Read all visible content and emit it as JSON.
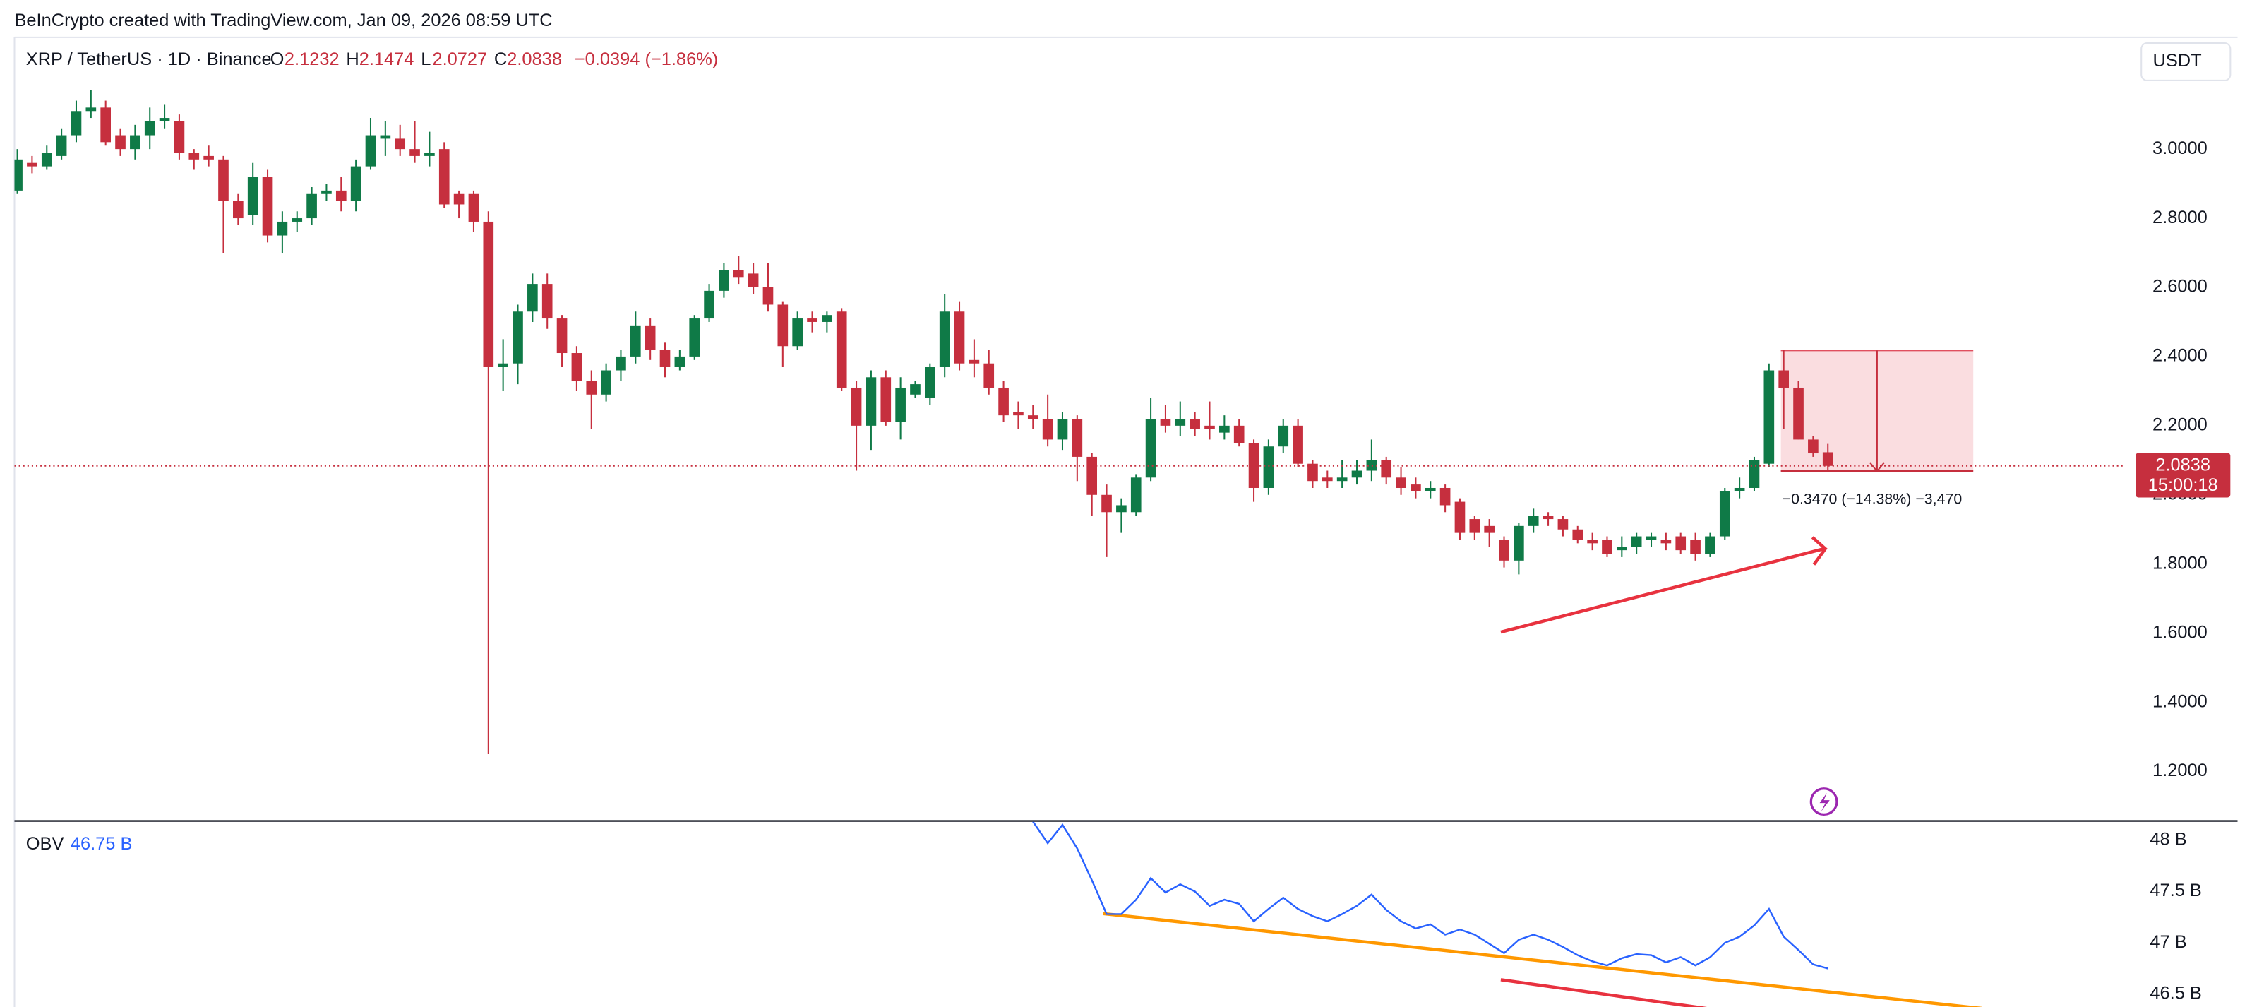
{
  "header": "BeInCrypto created with TradingView.com, Jan 09, 2026 08:59 UTC",
  "chart_data": [
    {
      "type": "candlestick",
      "title": "XRP / TetherUS · 1D · Binance",
      "ohlc_legend": {
        "open_label": "O",
        "open": 2.1232,
        "high_label": "H",
        "high": 2.1474,
        "low_label": "L",
        "low": 2.0727,
        "close_label": "C",
        "close": 2.0838,
        "change": "−0.0394 (−1.86%)"
      },
      "currency": "USDT",
      "countdown": "15:00:18",
      "measure_label": "−0.3470 (−14.38%) −3,470",
      "up_color": "#0f7a47",
      "down_color": "#c62f3e",
      "ylim": [
        1.059,
        3.319
      ],
      "yticks": [
        {
          "value": 1.2,
          "label": "1.2000"
        },
        {
          "value": 1.4,
          "label": "1.4000"
        },
        {
          "value": 1.6,
          "label": "1.6000"
        },
        {
          "value": 1.8,
          "label": "1.8000"
        },
        {
          "value": 2,
          "label": "2.0000"
        },
        {
          "value": 2.2,
          "label": "2.2000"
        },
        {
          "value": 2.4,
          "label": "2.4000"
        },
        {
          "value": 2.6,
          "label": "2.6000"
        },
        {
          "value": 2.8,
          "label": "2.8000"
        },
        {
          "value": 3,
          "label": "3.0000"
        }
      ],
      "open": [
        2.88,
        2.96,
        2.95,
        2.98,
        3.04,
        3.11,
        3.12,
        3.04,
        3.0,
        3.04,
        3.08,
        3.08,
        2.99,
        2.98,
        2.97,
        2.85,
        2.81,
        2.92,
        2.75,
        2.79,
        2.8,
        2.87,
        2.88,
        2.85,
        2.95,
        3.03,
        3.03,
        3.0,
        2.98,
        3.0,
        2.87,
        2.87,
        2.79,
        2.37,
        2.38,
        2.53,
        2.61,
        2.51,
        2.41,
        2.33,
        2.29,
        2.36,
        2.4,
        2.49,
        2.42,
        2.37,
        2.4,
        2.51,
        2.59,
        2.65,
        2.64,
        2.6,
        2.55,
        2.43,
        2.51,
        2.5,
        2.53,
        2.31,
        2.2,
        2.34,
        2.21,
        2.29,
        2.28,
        2.37,
        2.53,
        2.39,
        2.38,
        2.31,
        2.24,
        2.23,
        2.22,
        2.16,
        2.22,
        2.11,
        2.0,
        1.95,
        1.95,
        2.05,
        2.22,
        2.2,
        2.22,
        2.2,
        2.18,
        2.2,
        2.15,
        2.02,
        2.14,
        2.2,
        2.09,
        2.05,
        2.04,
        2.05,
        2.07,
        2.1,
        2.05,
        2.03,
        2.01,
        2.02,
        1.98,
        1.93,
        1.91,
        1.87,
        1.81,
        1.91,
        1.94,
        1.93,
        1.9,
        1.87,
        1.87,
        1.84,
        1.85,
        1.87,
        1.87,
        1.88,
        1.87,
        1.83,
        1.88,
        2.01,
        2.02,
        2.09,
        2.36,
        2.31,
        2.16,
        2.1232
      ],
      "high": [
        3.0,
        2.98,
        3.01,
        3.06,
        3.14,
        3.17,
        3.14,
        3.06,
        3.07,
        3.12,
        3.13,
        3.1,
        3.0,
        3.01,
        2.98,
        2.87,
        2.96,
        2.94,
        2.82,
        2.82,
        2.89,
        2.9,
        2.92,
        2.97,
        3.09,
        3.08,
        3.07,
        3.08,
        3.05,
        3.02,
        2.88,
        2.88,
        2.82,
        2.45,
        2.55,
        2.64,
        2.64,
        2.52,
        2.43,
        2.36,
        2.38,
        2.42,
        2.53,
        2.51,
        2.44,
        2.42,
        2.52,
        2.61,
        2.67,
        2.69,
        2.67,
        2.67,
        2.56,
        2.53,
        2.53,
        2.53,
        2.54,
        2.33,
        2.36,
        2.36,
        2.34,
        2.33,
        2.38,
        2.58,
        2.56,
        2.45,
        2.42,
        2.33,
        2.27,
        2.26,
        2.29,
        2.24,
        2.23,
        2.12,
        2.03,
        1.99,
        2.06,
        2.28,
        2.26,
        2.27,
        2.24,
        2.27,
        2.23,
        2.22,
        2.16,
        2.16,
        2.22,
        2.22,
        2.1,
        2.07,
        2.1,
        2.1,
        2.16,
        2.11,
        2.08,
        2.05,
        2.04,
        2.03,
        1.99,
        1.94,
        1.93,
        1.88,
        1.92,
        1.96,
        1.95,
        1.94,
        1.91,
        1.89,
        1.88,
        1.88,
        1.89,
        1.89,
        1.89,
        1.89,
        1.89,
        1.89,
        2.02,
        2.05,
        2.11,
        2.38,
        2.42,
        2.33,
        2.17,
        2.1474
      ],
      "low": [
        2.87,
        2.93,
        2.94,
        2.97,
        3.02,
        3.09,
        3.01,
        2.98,
        2.97,
        3.0,
        3.06,
        2.97,
        2.94,
        2.95,
        2.7,
        2.78,
        2.78,
        2.73,
        2.7,
        2.76,
        2.78,
        2.85,
        2.82,
        2.82,
        2.94,
        2.98,
        2.98,
        2.96,
        2.95,
        2.83,
        2.8,
        2.76,
        1.25,
        2.3,
        2.32,
        2.5,
        2.48,
        2.37,
        2.3,
        2.19,
        2.27,
        2.33,
        2.38,
        2.39,
        2.34,
        2.36,
        2.39,
        2.5,
        2.57,
        2.61,
        2.58,
        2.53,
        2.37,
        2.42,
        2.47,
        2.47,
        2.3,
        2.07,
        2.13,
        2.2,
        2.16,
        2.28,
        2.26,
        2.34,
        2.36,
        2.34,
        2.29,
        2.21,
        2.19,
        2.19,
        2.14,
        2.13,
        2.04,
        1.94,
        1.82,
        1.89,
        1.94,
        2.04,
        2.18,
        2.17,
        2.17,
        2.16,
        2.16,
        2.14,
        1.98,
        2.0,
        2.12,
        2.08,
        2.02,
        2.02,
        2.02,
        2.03,
        2.04,
        2.03,
        2.0,
        1.99,
        1.99,
        1.95,
        1.87,
        1.87,
        1.85,
        1.79,
        1.77,
        1.89,
        1.91,
        1.88,
        1.86,
        1.84,
        1.82,
        1.82,
        1.83,
        1.85,
        1.84,
        1.83,
        1.81,
        1.82,
        1.87,
        1.99,
        2.01,
        2.08,
        2.19,
        2.16,
        2.11,
        2.0727
      ],
      "close": [
        2.97,
        2.95,
        2.99,
        3.04,
        3.11,
        3.12,
        3.02,
        3.0,
        3.04,
        3.08,
        3.09,
        2.99,
        2.97,
        2.97,
        2.85,
        2.8,
        2.92,
        2.75,
        2.79,
        2.8,
        2.87,
        2.88,
        2.85,
        2.95,
        3.04,
        3.04,
        3.0,
        2.98,
        2.99,
        2.84,
        2.84,
        2.79,
        2.37,
        2.38,
        2.53,
        2.61,
        2.51,
        2.41,
        2.33,
        2.29,
        2.36,
        2.4,
        2.49,
        2.42,
        2.37,
        2.4,
        2.51,
        2.59,
        2.65,
        2.63,
        2.6,
        2.55,
        2.43,
        2.51,
        2.5,
        2.52,
        2.31,
        2.2,
        2.34,
        2.21,
        2.31,
        2.32,
        2.37,
        2.53,
        2.38,
        2.38,
        2.31,
        2.23,
        2.23,
        2.22,
        2.16,
        2.22,
        2.11,
        2.0,
        1.95,
        1.97,
        2.05,
        2.22,
        2.2,
        2.22,
        2.19,
        2.19,
        2.2,
        2.15,
        2.02,
        2.14,
        2.2,
        2.09,
        2.04,
        2.04,
        2.05,
        2.07,
        2.1,
        2.05,
        2.02,
        2.01,
        2.02,
        1.97,
        1.89,
        1.89,
        1.89,
        1.81,
        1.91,
        1.94,
        1.93,
        1.9,
        1.87,
        1.86,
        1.83,
        1.85,
        1.88,
        1.88,
        1.86,
        1.84,
        1.83,
        1.88,
        2.01,
        2.02,
        2.1,
        2.36,
        2.31,
        2.16,
        2.12,
        2.0838
      ]
    },
    {
      "type": "line",
      "title": "OBV",
      "legend_value": "46.75 B",
      "color": "#2962ff",
      "ylim": [
        46.375,
        48.18
      ],
      "yticks": [
        {
          "value": 46.5,
          "label": "46.5 B"
        },
        {
          "value": 47,
          "label": "47 B"
        },
        {
          "value": 47.5,
          "label": "47.5 B"
        },
        {
          "value": 48,
          "label": "48 B"
        }
      ],
      "values": [
        null,
        null,
        null,
        null,
        null,
        null,
        null,
        null,
        null,
        null,
        null,
        null,
        null,
        null,
        null,
        null,
        null,
        null,
        null,
        null,
        null,
        null,
        null,
        null,
        null,
        null,
        null,
        null,
        null,
        null,
        null,
        null,
        null,
        null,
        null,
        null,
        null,
        null,
        null,
        null,
        null,
        null,
        null,
        null,
        null,
        null,
        null,
        null,
        null,
        null,
        null,
        null,
        null,
        null,
        null,
        null,
        null,
        null,
        null,
        null,
        null,
        null,
        null,
        null,
        null,
        null,
        null,
        null,
        null,
        48.18,
        47.97,
        48.15,
        47.92,
        47.61,
        47.28,
        47.28,
        47.42,
        47.63,
        47.49,
        47.57,
        47.5,
        47.36,
        47.42,
        47.38,
        47.21,
        47.33,
        47.44,
        47.33,
        47.26,
        47.21,
        47.28,
        47.36,
        47.47,
        47.32,
        47.21,
        47.14,
        47.18,
        47.08,
        47.13,
        47.08,
        46.99,
        46.9,
        47.03,
        47.08,
        47.03,
        46.96,
        46.88,
        46.82,
        46.78,
        46.85,
        46.89,
        46.88,
        46.81,
        46.86,
        46.78,
        46.86,
        47.0,
        47.06,
        47.17,
        47.33,
        47.06,
        46.93,
        46.79,
        46.75
      ]
    }
  ]
}
